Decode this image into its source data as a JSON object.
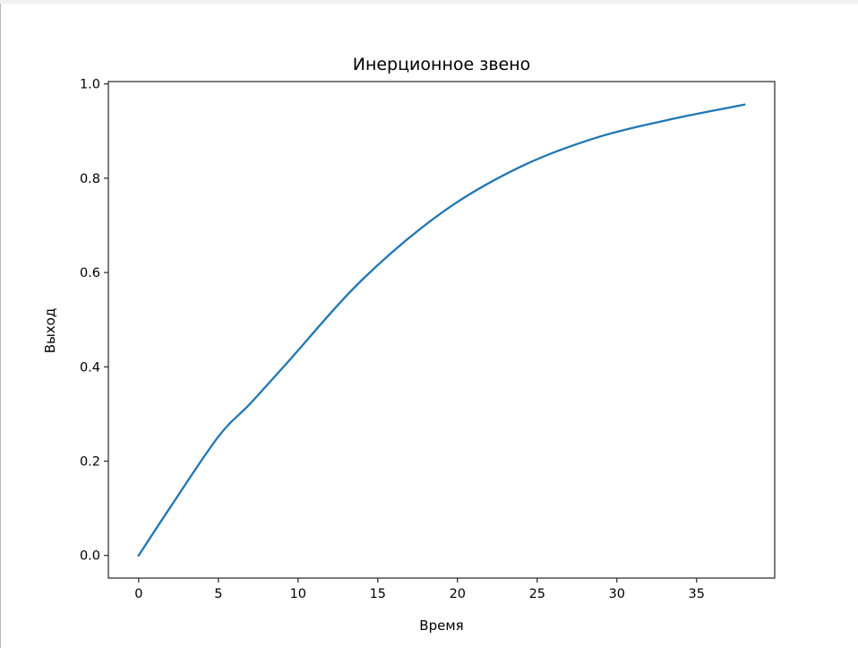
{
  "chart_data": {
    "type": "line",
    "title": "Инерционное звено",
    "xlabel": "Время",
    "ylabel": "Выход",
    "xlim": [
      -1.9,
      39.9
    ],
    "ylim": [
      -0.048,
      1.005
    ],
    "xticks": [
      0,
      5,
      10,
      15,
      20,
      25,
      30,
      35
    ],
    "xtick_labels": [
      "0",
      "5",
      "10",
      "15",
      "20",
      "25",
      "30",
      "35"
    ],
    "yticks": [
      0.0,
      0.2,
      0.4,
      0.6,
      0.8,
      1.0
    ],
    "ytick_labels": [
      "0.0",
      "0.2",
      "0.4",
      "0.6",
      "0.8",
      "1.0"
    ],
    "grid": false,
    "series": [
      {
        "color": "#1f77b4",
        "x": [
          0,
          2,
          5,
          7,
          9.3,
          14,
          19.1,
          24,
          28.9,
          33.8,
          38
        ],
        "y": [
          0,
          0.103,
          0.252,
          0.322,
          0.408,
          0.584,
          0.729,
          0.825,
          0.888,
          0.928,
          0.956
        ]
      }
    ]
  }
}
